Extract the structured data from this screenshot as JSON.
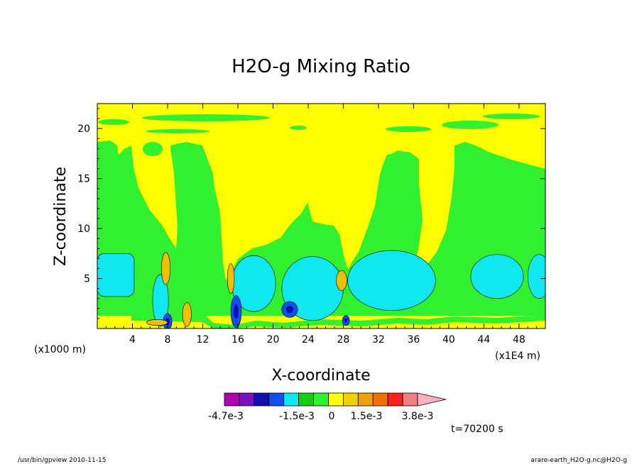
{
  "chart_data": {
    "type": "heatmap",
    "title": "H2O-g Mixing Ratio",
    "xlabel": "X-coordinate",
    "ylabel": "Z-coordinate",
    "x_unit_left": "(x1000 m)",
    "x_unit_right": "(x1E4 m)",
    "xlim": [
      0,
      51
    ],
    "ylim": [
      0,
      22.5
    ],
    "x_ticks": [
      4,
      8,
      12,
      16,
      20,
      24,
      28,
      32,
      36,
      40,
      44,
      48
    ],
    "y_ticks": [
      5,
      10,
      15,
      20
    ],
    "colorbar": {
      "colors": [
        "#b000b0",
        "#7a10c0",
        "#1010b0",
        "#1050f0",
        "#10e8f0",
        "#10d010",
        "#30f030",
        "#ffff00",
        "#f0d000",
        "#f0a000",
        "#f07000",
        "#ff2020",
        "#f08080",
        "#ffb0c0"
      ],
      "tick_labels": [
        "-4.7e-3",
        "-1.5e-3",
        "0",
        "1.5e-3",
        "3.8e-3"
      ]
    },
    "time_label": "t=70200 s",
    "footer_left": "/usr/bin/gpview  2010-11-15",
    "footer_right": "arare-earth_H2O-g.nc@H2O-g",
    "regions": [
      {
        "level": "cyan",
        "shape": "band",
        "x": [
          0,
          4.2
        ],
        "z": [
          3.2,
          7.5
        ]
      },
      {
        "level": "cyan",
        "shape": "blob",
        "cx": 17.8,
        "cz": 4.5,
        "rx": 2.5,
        "rz": 2.8
      },
      {
        "level": "cyan",
        "shape": "blob",
        "cx": 24.5,
        "cz": 4.0,
        "rx": 3.5,
        "rz": 3.2
      },
      {
        "level": "cyan",
        "shape": "blob",
        "cx": 33.5,
        "cz": 4.8,
        "rx": 5.0,
        "rz": 3.0
      },
      {
        "level": "cyan",
        "shape": "blob",
        "cx": 45.5,
        "cz": 5.2,
        "rx": 3.0,
        "rz": 2.2
      },
      {
        "level": "cyan",
        "shape": "blob",
        "cx": 50.3,
        "cz": 5.2,
        "rx": 1.3,
        "rz": 2.2
      },
      {
        "level": "cyan",
        "shape": "blob",
        "cx": 7.2,
        "cz": 2.8,
        "rx": 0.9,
        "rz": 2.6
      },
      {
        "level": "blue",
        "shape": "blob",
        "cx": 8.0,
        "cz": 0.7,
        "rx": 0.5,
        "rz": 0.8
      },
      {
        "level": "blue",
        "shape": "blob",
        "cx": 15.8,
        "cz": 1.7,
        "rx": 0.6,
        "rz": 1.6
      },
      {
        "level": "blue",
        "shape": "blob",
        "cx": 21.9,
        "cz": 1.9,
        "rx": 0.9,
        "rz": 0.8
      },
      {
        "level": "blue",
        "shape": "blob",
        "cx": 28.3,
        "cz": 0.8,
        "rx": 0.4,
        "rz": 0.5
      },
      {
        "level": "orange",
        "shape": "blob",
        "cx": 7.8,
        "cz": 6.0,
        "rx": 0.5,
        "rz": 1.6
      },
      {
        "level": "orange",
        "shape": "blob",
        "cx": 15.2,
        "cz": 5.0,
        "rx": 0.4,
        "rz": 1.5
      },
      {
        "level": "orange",
        "shape": "blob",
        "cx": 27.8,
        "cz": 4.8,
        "rx": 0.6,
        "rz": 1.0
      },
      {
        "level": "orange",
        "shape": "blob",
        "cx": 10.2,
        "cz": 1.4,
        "rx": 0.5,
        "rz": 1.2
      },
      {
        "level": "orange",
        "shape": "blob",
        "cx": 6.8,
        "cz": 0.6,
        "rx": 1.2,
        "rz": 0.3
      }
    ]
  }
}
